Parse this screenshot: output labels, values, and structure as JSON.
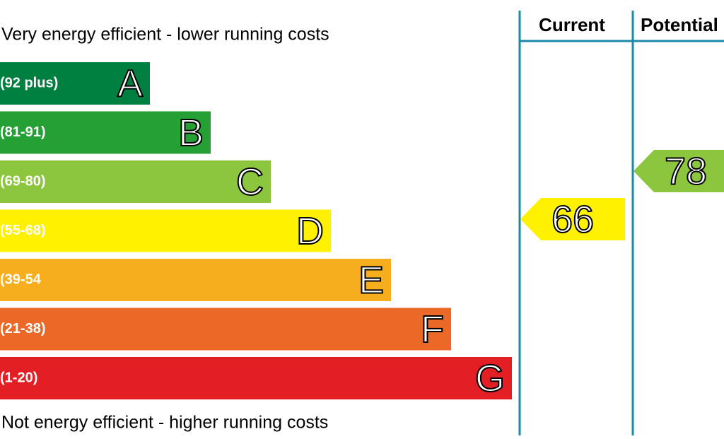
{
  "header": {
    "top_text": "Very energy efficient - lower running costs",
    "bottom_text": "Not energy efficient - higher running costs"
  },
  "bands": [
    {
      "range": "(92 plus)",
      "letter": "A",
      "color": "#008040"
    },
    {
      "range": "(81-91)",
      "letter": "B",
      "color": "#25a034"
    },
    {
      "range": "(69-80)",
      "letter": "C",
      "color": "#8cc63e"
    },
    {
      "range": "(55-68)",
      "letter": "D",
      "color": "#fff100"
    },
    {
      "range": "(39-54",
      "letter": "E",
      "color": "#f6ae1f"
    },
    {
      "range": "(21-38)",
      "letter": "F",
      "color": "#ec6826"
    },
    {
      "range": "(1-20)",
      "letter": "G",
      "color": "#e31e24"
    }
  ],
  "columns": {
    "current": {
      "title": "Current",
      "rating": "66",
      "color": "#fff100"
    },
    "potential": {
      "title": "Potential",
      "rating": "78",
      "color": "#8cc63e"
    }
  }
}
